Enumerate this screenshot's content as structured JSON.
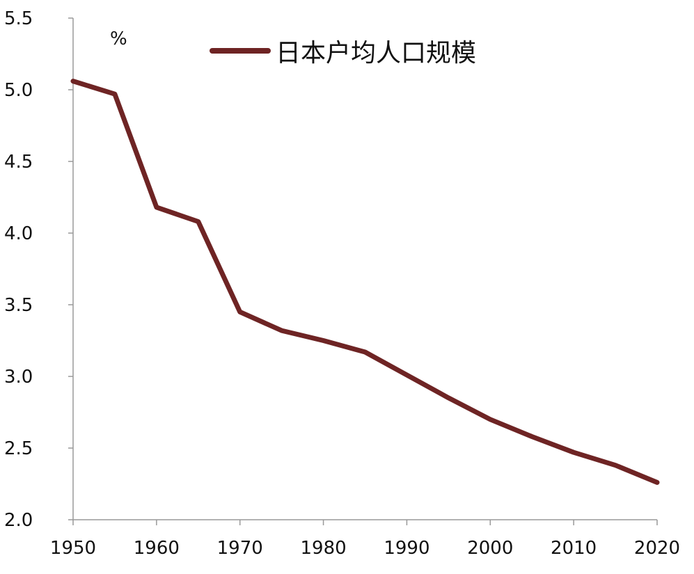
{
  "chart_data": {
    "type": "line",
    "title": "",
    "xlabel": "",
    "ylabel": "",
    "unit_label": "%",
    "xlim": [
      1950,
      2020
    ],
    "ylim": [
      2.0,
      5.5
    ],
    "x_ticks": [
      "1950",
      "1960",
      "1970",
      "1980",
      "1990",
      "2000",
      "2010",
      "2020"
    ],
    "y_ticks": [
      "2.0",
      "2.5",
      "3.0",
      "3.5",
      "4.0",
      "4.5",
      "5.0",
      "5.5"
    ],
    "grid": false,
    "legend_position": "top-center",
    "x": [
      1950,
      1955,
      1960,
      1965,
      1970,
      1975,
      1980,
      1985,
      1990,
      1995,
      2000,
      2005,
      2010,
      2015,
      2020
    ],
    "series": [
      {
        "name": "日本户均人口规模",
        "color": "#6e2424",
        "values": [
          5.06,
          4.97,
          4.18,
          4.08,
          3.45,
          3.32,
          3.25,
          3.17,
          3.01,
          2.85,
          2.7,
          2.58,
          2.47,
          2.38,
          2.26
        ]
      }
    ]
  }
}
